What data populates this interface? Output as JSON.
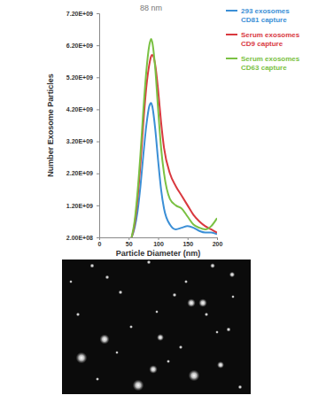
{
  "chart_data": {
    "type": "line",
    "x_label": "Particle Diameter (nm)",
    "y_label": "Number Exosome Particles",
    "annotations": [
      {
        "text": "88 nm",
        "x": 88
      }
    ],
    "x": [
      55,
      60,
      65,
      70,
      75,
      80,
      85,
      88,
      90,
      95,
      100,
      105,
      110,
      120,
      130,
      140,
      150,
      160,
      170,
      180,
      190,
      200
    ],
    "series": [
      {
        "name": "293 exosomes CD81 capture",
        "color": "#3b8fd6",
        "values": [
          200000000,
          500000000,
          1000000000,
          1800000000,
          2800000000,
          3700000000,
          4300000000,
          4400000000,
          4300000000,
          3600000000,
          2600000000,
          1700000000,
          1100000000,
          600000000,
          450000000,
          500000000,
          550000000,
          500000000,
          400000000,
          350000000,
          350000000,
          300000000
        ]
      },
      {
        "name": "Serum exosomes CD9 capture",
        "color": "#d9393f",
        "values": [
          200000000,
          600000000,
          1400000000,
          2500000000,
          3800000000,
          4900000000,
          5600000000,
          5850000000,
          5900000000,
          5600000000,
          4800000000,
          3800000000,
          3000000000,
          2200000000,
          1800000000,
          1500000000,
          1200000000,
          900000000,
          700000000,
          550000000,
          450000000,
          350000000
        ]
      },
      {
        "name": "Serum exosomes CD63 capture",
        "color": "#7ac143",
        "values": [
          200000000,
          700000000,
          1600000000,
          2800000000,
          4200000000,
          5400000000,
          6200000000,
          6400000000,
          6300000000,
          5500000000,
          4200000000,
          3000000000,
          2200000000,
          1400000000,
          1200000000,
          1100000000,
          850000000,
          600000000,
          500000000,
          450000000,
          550000000,
          800000000
        ]
      }
    ],
    "xlim": [
      0,
      200
    ],
    "xticks": [
      0,
      50,
      100,
      150,
      200
    ],
    "ylim": [
      200000000,
      7200000000
    ],
    "yticks": [
      {
        "value": 200000000,
        "label": "2.00E+08"
      },
      {
        "value": 1200000000,
        "label": "1.20E+09"
      },
      {
        "value": 2200000000,
        "label": "2.20E+09"
      },
      {
        "value": 3200000000,
        "label": "3.20E+09"
      },
      {
        "value": 4200000000,
        "label": "4.20E+09"
      },
      {
        "value": 5200000000,
        "label": "5.20E+09"
      },
      {
        "value": 6200000000,
        "label": "6.20E+09"
      },
      {
        "value": 7200000000,
        "label": "7.20E+09"
      }
    ],
    "grid": false,
    "legend": "top-right"
  }
}
